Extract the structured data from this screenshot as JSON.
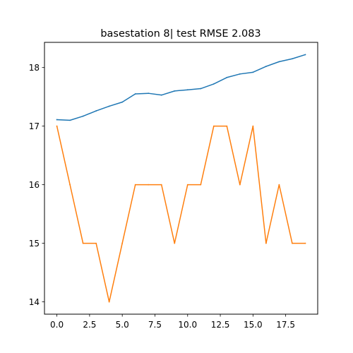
{
  "chart_data": {
    "type": "line",
    "title": "basestation 8| test RMSE 2.083",
    "xlabel": "",
    "ylabel": "",
    "x": [
      0,
      1,
      2,
      3,
      4,
      5,
      6,
      7,
      8,
      9,
      10,
      11,
      12,
      13,
      14,
      15,
      16,
      17,
      18,
      19
    ],
    "xlim": [
      -0.95,
      19.95
    ],
    "ylim": [
      13.79,
      18.43
    ],
    "xticks": [
      0.0,
      2.5,
      5.0,
      7.5,
      10.0,
      12.5,
      15.0,
      17.5
    ],
    "xtick_labels": [
      "0.0",
      "2.5",
      "5.0",
      "7.5",
      "10.0",
      "12.5",
      "15.0",
      "17.5"
    ],
    "yticks": [
      14,
      15,
      16,
      17,
      18
    ],
    "ytick_labels": [
      "14",
      "15",
      "16",
      "17",
      "18"
    ],
    "grid": false,
    "series": [
      {
        "color": "#1f77b4",
        "values": [
          17.11,
          17.1,
          17.17,
          17.26,
          17.34,
          17.41,
          17.55,
          17.56,
          17.53,
          17.6,
          17.62,
          17.64,
          17.72,
          17.83,
          17.89,
          17.92,
          18.02,
          18.1,
          18.15,
          18.22
        ]
      },
      {
        "color": "#ff7f0e",
        "values": [
          17,
          16,
          15,
          15,
          14,
          15,
          16,
          16,
          16,
          15,
          16,
          16,
          17,
          17,
          16,
          17,
          15,
          16,
          15,
          15
        ]
      }
    ]
  }
}
